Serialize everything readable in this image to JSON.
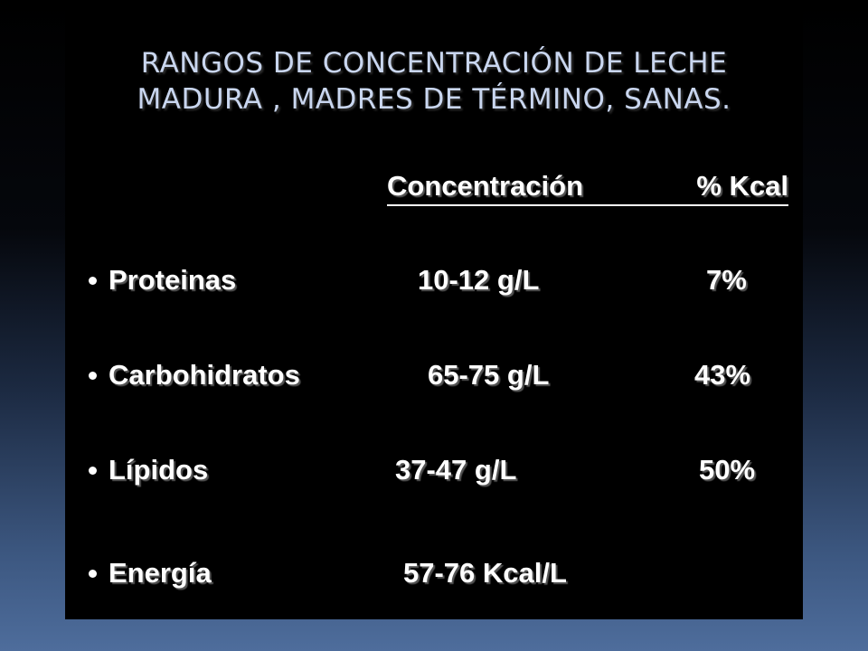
{
  "title": {
    "lines": [
      "RANGOS DE CONCENTRACIÓN DE LECHE",
      "MADURA , MADRES DE TÉRMINO, SANAS."
    ]
  },
  "table": {
    "header": [
      "Concentración",
      "% Kcal"
    ],
    "rows": [
      {
        "label": "Proteinas",
        "concentration": "10-12 g/L",
        "kcal": "7%"
      },
      {
        "label": "Carbohidratos",
        "concentration": "65-75 g/L",
        "kcal": "43%"
      },
      {
        "label": "Lípidos",
        "concentration": "37-47 g/L",
        "kcal": "50%"
      },
      {
        "label": "Energía",
        "concentration": "57-76 Kcal/L"
      }
    ]
  }
}
